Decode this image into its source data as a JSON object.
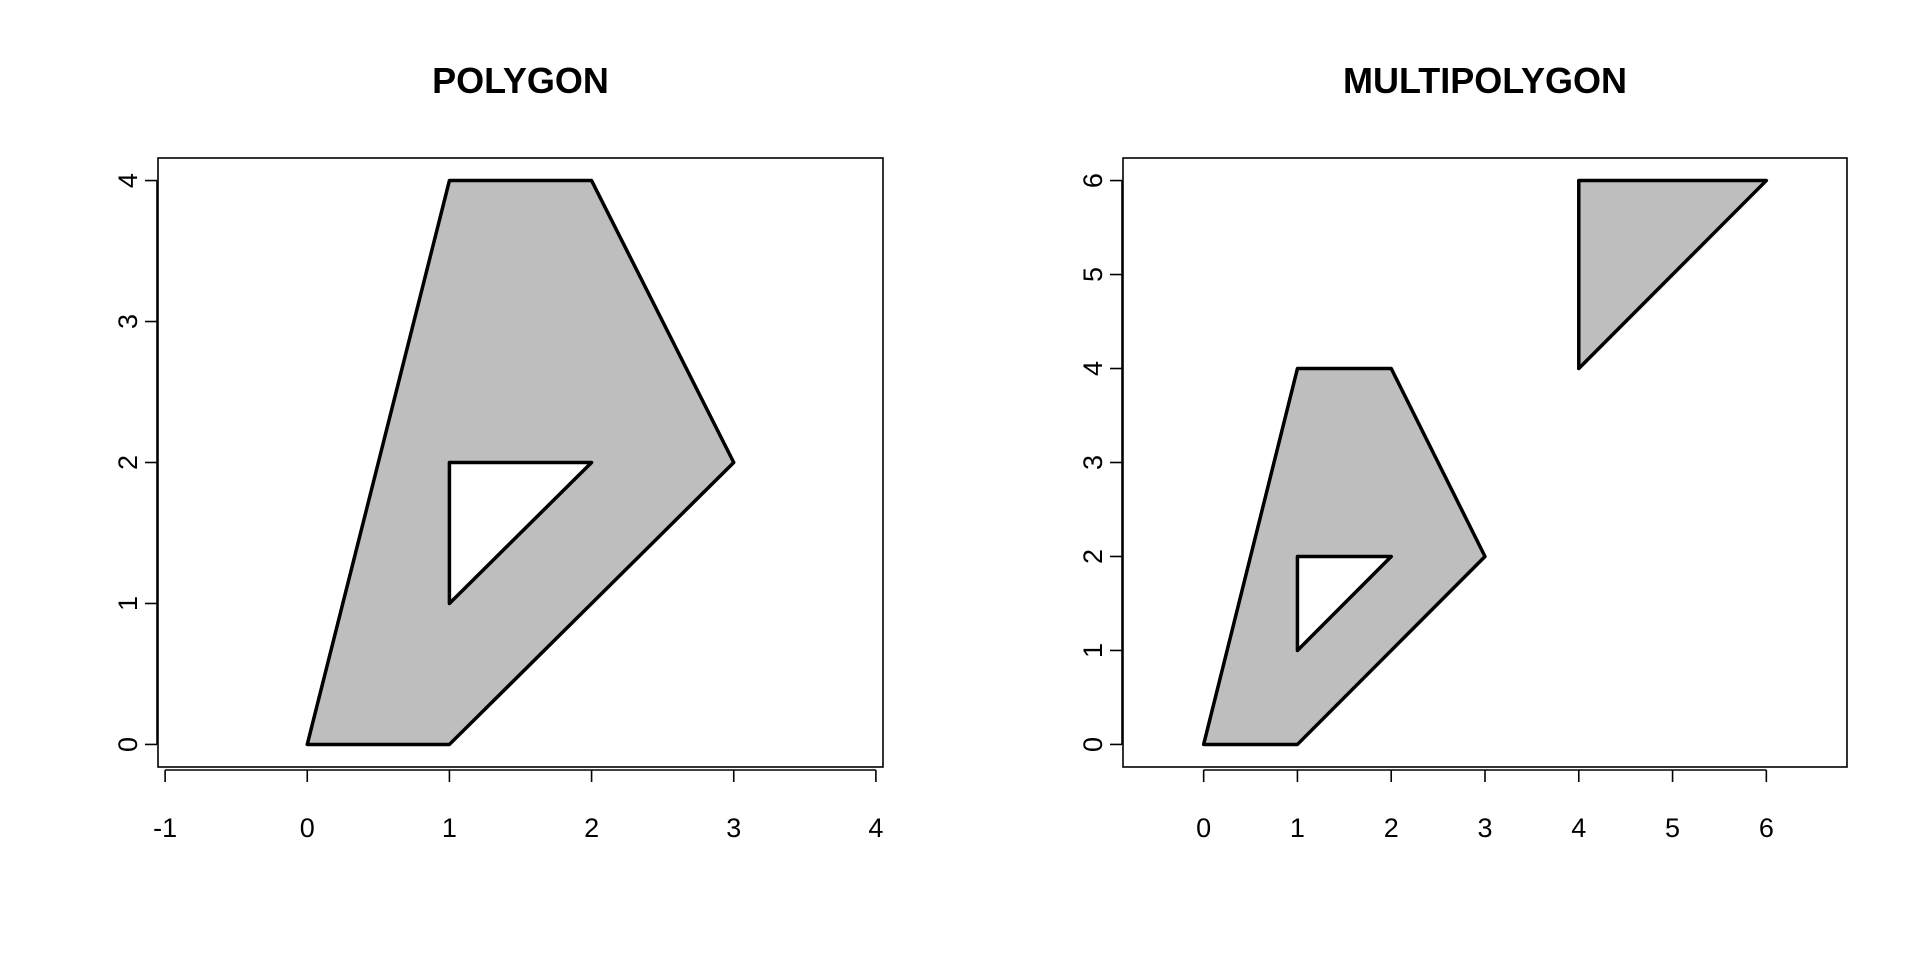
{
  "chart_data": [
    {
      "type": "polygon",
      "title": "POLYGON",
      "xlim": [
        -1.05,
        4.05
      ],
      "ylim": [
        -0.16,
        4.16
      ],
      "xticks": [
        -1,
        0,
        1,
        2,
        3,
        4
      ],
      "yticks": [
        0,
        1,
        2,
        3,
        4
      ],
      "xlabel": "",
      "ylabel": "",
      "fill_color": "#bebebe",
      "stroke_color": "#000000",
      "polygons": [
        {
          "exterior": [
            [
              0,
              0
            ],
            [
              1,
              0
            ],
            [
              3,
              2
            ],
            [
              2,
              4
            ],
            [
              1,
              4
            ],
            [
              0,
              0
            ]
          ],
          "holes": [
            [
              [
                1,
                1
              ],
              [
                2,
                2
              ],
              [
                1,
                2
              ],
              [
                1,
                1
              ]
            ]
          ]
        }
      ]
    },
    {
      "type": "multipolygon",
      "title": "MULTIPOLYGON",
      "xlim": [
        -0.86,
        6.86
      ],
      "ylim": [
        -0.24,
        6.24
      ],
      "xticks": [
        0,
        1,
        2,
        3,
        4,
        5,
        6
      ],
      "yticks": [
        0,
        1,
        2,
        3,
        4,
        5,
        6
      ],
      "xlabel": "",
      "ylabel": "",
      "fill_color": "#bebebe",
      "stroke_color": "#000000",
      "polygons": [
        {
          "exterior": [
            [
              0,
              0
            ],
            [
              1,
              0
            ],
            [
              3,
              2
            ],
            [
              2,
              4
            ],
            [
              1,
              4
            ],
            [
              0,
              0
            ]
          ],
          "holes": [
            [
              [
                1,
                1
              ],
              [
                2,
                2
              ],
              [
                1,
                2
              ],
              [
                1,
                1
              ]
            ]
          ]
        },
        {
          "exterior": [
            [
              4,
              4
            ],
            [
              6,
              6
            ],
            [
              4,
              6
            ],
            [
              4,
              4
            ]
          ],
          "holes": []
        }
      ]
    }
  ]
}
